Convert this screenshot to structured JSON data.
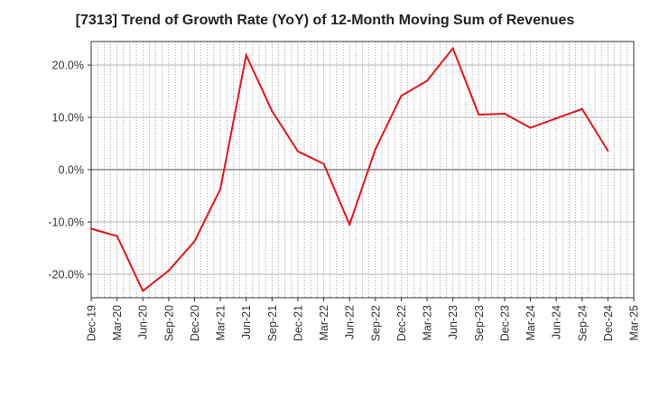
{
  "chart_data": {
    "type": "line",
    "title": "[7313]  Trend of Growth Rate (YoY) of 12-Month Moving Sum of Revenues",
    "xlabel": "",
    "ylabel": "",
    "x": [
      "Dec-19",
      "Mar-20",
      "Jun-20",
      "Sep-20",
      "Dec-20",
      "Mar-21",
      "Jun-21",
      "Sep-21",
      "Dec-21",
      "Mar-22",
      "Jun-22",
      "Sep-22",
      "Dec-22",
      "Mar-23",
      "Jun-23",
      "Sep-23",
      "Dec-23",
      "Mar-24",
      "Jun-24",
      "Sep-24",
      "Dec-24",
      "Mar-25"
    ],
    "x_tick_labels": [
      "Dec-19",
      "Mar-20",
      "Jun-20",
      "Sep-20",
      "Dec-20",
      "Mar-21",
      "Jun-21",
      "Sep-21",
      "Dec-21",
      "Mar-22",
      "Jun-22",
      "Sep-22",
      "Dec-22",
      "Mar-23",
      "Jun-23",
      "Sep-23",
      "Dec-23",
      "Mar-24",
      "Jun-24",
      "Sep-24",
      "Dec-24",
      "Mar-25"
    ],
    "series": [
      {
        "name": "",
        "color": "#e8141c",
        "values": [
          -11.3,
          -12.7,
          -23.2,
          -19.3,
          -13.7,
          -3.7,
          21.9,
          11.2,
          3.5,
          1.1,
          -10.5,
          3.9,
          14.1,
          17.0,
          23.2,
          10.5,
          10.7,
          8.0,
          9.8,
          11.6,
          3.6,
          null
        ]
      }
    ],
    "ylim": [
      -24.5,
      24.5
    ],
    "y_ticks": [
      -20,
      -10,
      0,
      10,
      20
    ],
    "y_tick_labels": [
      "-20.0%",
      "-10.0%",
      "0.0%",
      "10.0%",
      "20.0%"
    ],
    "grid": "vertical dotted, horizontal solid",
    "legend": "none"
  }
}
